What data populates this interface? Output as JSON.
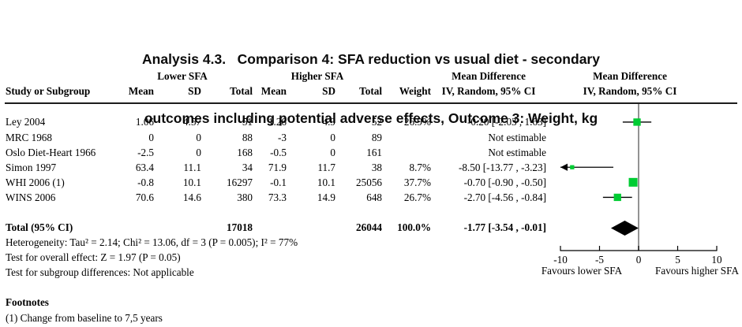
{
  "title": {
    "line1": "Analysis 4.3.   Comparison 4: SFA reduction vs usual diet - secondary",
    "line2": "outcomes including potential adverse effects, Outcome 3: Weight, kg"
  },
  "header": {
    "group_lower": "Lower SFA",
    "group_higher": "Higher SFA",
    "study": "Study or Subgroup",
    "mean": "Mean",
    "sd": "SD",
    "total": "Total",
    "weight": "Weight",
    "md_line1": "Mean Difference",
    "md_line2": "IV, Random, 95% CI"
  },
  "rows": [
    {
      "study": "Ley 2004",
      "mean1": "1.06",
      "sd1": "4.57",
      "total1": "51",
      "mean2": "1.26",
      "sd2": "4.9",
      "total2": "52",
      "weight": "26.9%",
      "md": "-0.20 [-2.03 , 1.63]"
    },
    {
      "study": "MRC 1968",
      "mean1": "0",
      "sd1": "0",
      "total1": "88",
      "mean2": "-3",
      "sd2": "0",
      "total2": "89",
      "weight": "",
      "md": "Not estimable"
    },
    {
      "study": "Oslo Diet-Heart 1966",
      "mean1": "-2.5",
      "sd1": "0",
      "total1": "168",
      "mean2": "-0.5",
      "sd2": "0",
      "total2": "161",
      "weight": "",
      "md": "Not estimable"
    },
    {
      "study": "Simon 1997",
      "mean1": "63.4",
      "sd1": "11.1",
      "total1": "34",
      "mean2": "71.9",
      "sd2": "11.7",
      "total2": "38",
      "weight": "8.7%",
      "md": "-8.50 [-13.77 , -3.23]"
    },
    {
      "study": "WHI 2006 (1)",
      "mean1": "-0.8",
      "sd1": "10.1",
      "total1": "16297",
      "mean2": "-0.1",
      "sd2": "10.1",
      "total2": "25056",
      "weight": "37.7%",
      "md": "-0.70 [-0.90 , -0.50]"
    },
    {
      "study": "WINS 2006",
      "mean1": "70.6",
      "sd1": "14.6",
      "total1": "380",
      "mean2": "73.3",
      "sd2": "14.9",
      "total2": "648",
      "weight": "26.7%",
      "md": "-2.70 [-4.56 , -0.84]"
    }
  ],
  "total_row": {
    "label": "Total (95% CI)",
    "total1": "17018",
    "total2": "26044",
    "weight": "100.0%",
    "md": "-1.77 [-3.54 , -0.01]"
  },
  "stats": {
    "heterogeneity": "Heterogeneity: Tau² = 2.14; Chi² = 13.06, df = 3 (P = 0.005); I² = 77%",
    "overall_effect": "Test for overall effect: Z = 1.97 (P = 0.05)",
    "subgroup": "Test for subgroup differences: Not applicable"
  },
  "footnotes": {
    "heading": "Footnotes",
    "item1": "(1) Change from baseline to 7,5 years"
  },
  "chart_data": {
    "type": "forest",
    "effect_measure": "Mean Difference, IV, Random, 95% CI",
    "xlim": [
      -10,
      10
    ],
    "ticks": [
      -10,
      -5,
      0,
      5,
      10
    ],
    "favours_left": "Favours lower SFA",
    "favours_right": "Favours higher SFA",
    "marker_color": "#00CC33",
    "line_color": "#000000",
    "zero_line_color": "#808080",
    "points": [
      {
        "study": "Ley 2004",
        "md": -0.2,
        "ci_low": -2.03,
        "ci_high": 1.63,
        "weight": 26.9,
        "row": 0
      },
      {
        "study": "Simon 1997",
        "md": -8.5,
        "ci_low": -13.77,
        "ci_high": -3.23,
        "weight": 8.7,
        "row": 3
      },
      {
        "study": "WHI 2006 (1)",
        "md": -0.7,
        "ci_low": -0.9,
        "ci_high": -0.5,
        "weight": 37.7,
        "row": 4
      },
      {
        "study": "WINS 2006",
        "md": -2.7,
        "ci_low": -4.56,
        "ci_high": -0.84,
        "weight": 26.7,
        "row": 5
      }
    ],
    "diamond": {
      "md": -1.77,
      "ci_low": -3.54,
      "ci_high": -0.01,
      "weight": 100.0
    }
  }
}
